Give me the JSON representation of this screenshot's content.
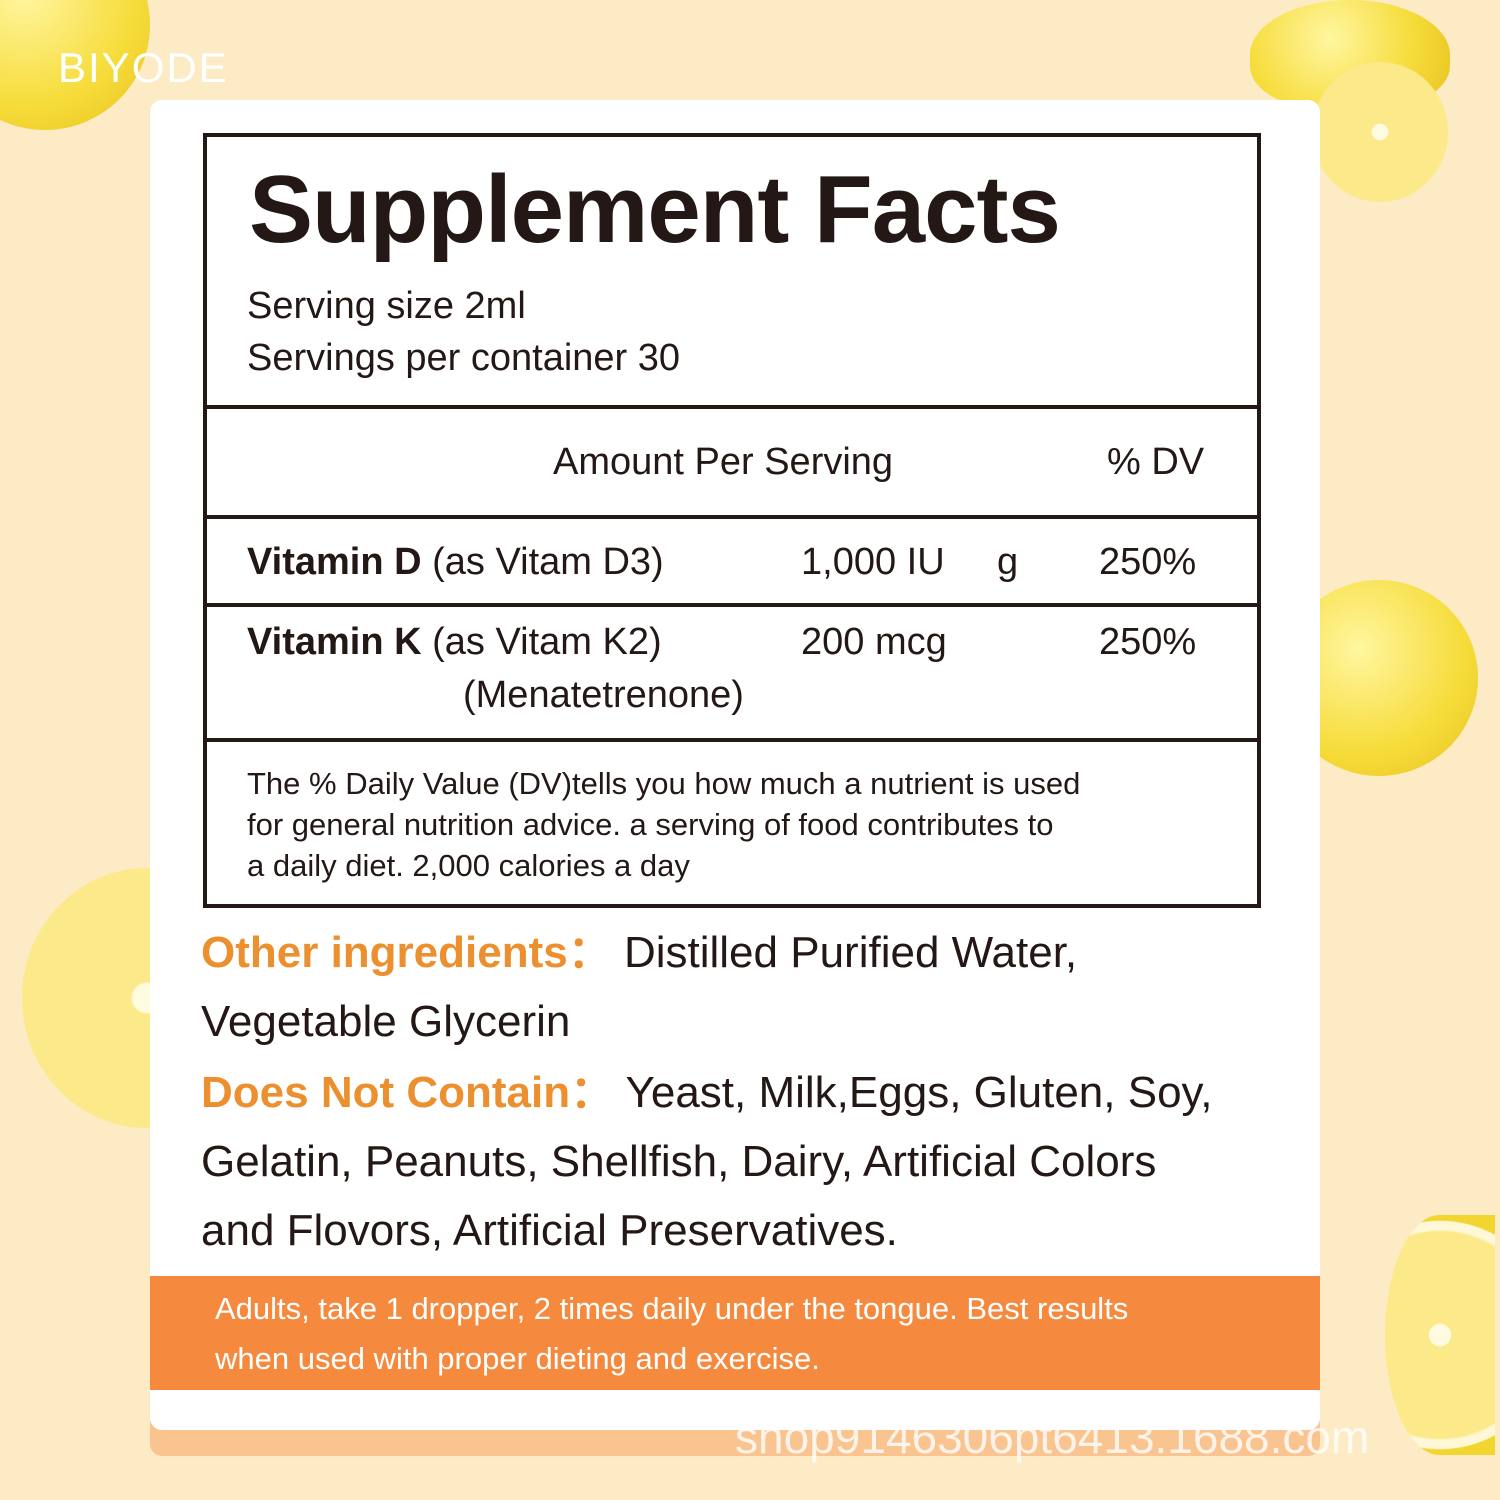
{
  "brand": {
    "logo": "BIYODE"
  },
  "facts": {
    "title": "Supplement Facts",
    "serving_size": "Serving size 2ml",
    "servings_per_container": "Servings per container 30",
    "header": {
      "amount": "Amount Per Serving",
      "dv": "% DV"
    },
    "rows": [
      {
        "name": "Vitamin D",
        "source": "(as Vitam D3)",
        "amount": "1,000 IU",
        "overlap": "g",
        "dv": "250%"
      },
      {
        "name": "Vitamin K",
        "source": "(as Vitam K2)",
        "source2": "(Menatetrenone)",
        "amount": "200 mcg",
        "dv": "250%"
      }
    ],
    "footnote": [
      "The % Daily Value (DV)tells you how much a nutrient is used",
      "for general nutrition advice. a serving of food contributes to",
      "a daily diet. 2,000 calories a day"
    ]
  },
  "other_ingredients": {
    "label": "Other ingredients：",
    "text": "Distilled Purified Water,",
    "text2": "Vegetable Glycerin"
  },
  "does_not_contain": {
    "label": "Does Not Contain：",
    "text": "Yeast, Milk,Eggs, Gluten, Soy,",
    "text2": "Gelatin, Peanuts, Shellfish, Dairy, Artificial Colors",
    "text3": "and Flovors, Artificial Preservatives."
  },
  "directions": [
    "Adults, take 1 dropper, 2 times daily under the tongue. Best results",
    "when used with proper dieting and exercise."
  ],
  "watermark": "shop9146306pt6413.1688.com",
  "colors": {
    "background": "#fcebc4",
    "accent": "#ec8f2e",
    "band": "#f58a3f"
  }
}
